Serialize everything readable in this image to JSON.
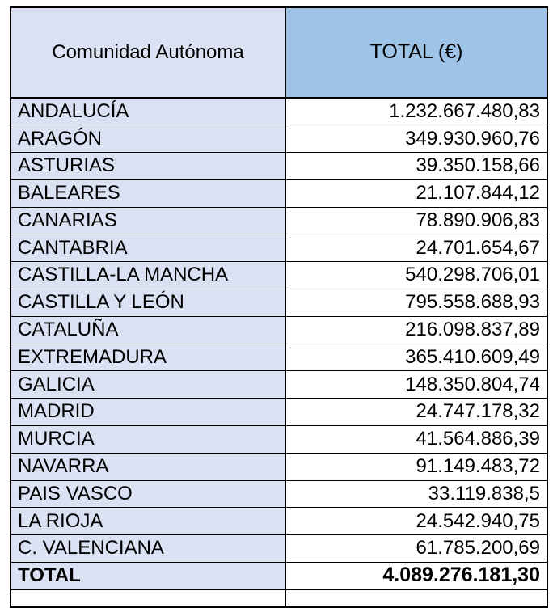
{
  "colors": {
    "header_region_bg": "#D9E1F2",
    "header_total_bg": "#9DC3E6",
    "label_bg": "#D9E1F2",
    "value_bg": "#FFFFFF",
    "border_color": "#000000"
  },
  "table": {
    "header": {
      "region_label": "Comunidad Autónoma",
      "total_label": "TOTAL (€)"
    },
    "rows": [
      {
        "name": "ANDALUCÍA",
        "value": "1.232.667.480,83"
      },
      {
        "name": "ARAGÓN",
        "value": "349.930.960,76"
      },
      {
        "name": "ASTURIAS",
        "value": "39.350.158,66"
      },
      {
        "name": "BALEARES",
        "value": "21.107.844,12"
      },
      {
        "name": "CANARIAS",
        "value": "78.890.906,83"
      },
      {
        "name": "CANTABRIA",
        "value": "24.701.654,67"
      },
      {
        "name": "CASTILLA-LA MANCHA",
        "value": "540.298.706,01"
      },
      {
        "name": "CASTILLA Y LEÓN",
        "value": "795.558.688,93"
      },
      {
        "name": "CATALUÑA",
        "value": "216.098.837,89"
      },
      {
        "name": "EXTREMADURA",
        "value": "365.410.609,49"
      },
      {
        "name": "GALICIA",
        "value": "148.350.804,74"
      },
      {
        "name": "MADRID",
        "value": "24.747.178,32"
      },
      {
        "name": "MURCIA",
        "value": "41.564.886,39"
      },
      {
        "name": "NAVARRA",
        "value": "91.149.483,72"
      },
      {
        "name": "PAIS VASCO",
        "value": "33.119.838,5"
      },
      {
        "name": "LA RIOJA",
        "value": "24.542.940,75"
      },
      {
        "name": "C. VALENCIANA",
        "value": "61.785.200,69"
      }
    ],
    "total": {
      "name": "TOTAL",
      "value": "4.089.276.181,30"
    }
  }
}
